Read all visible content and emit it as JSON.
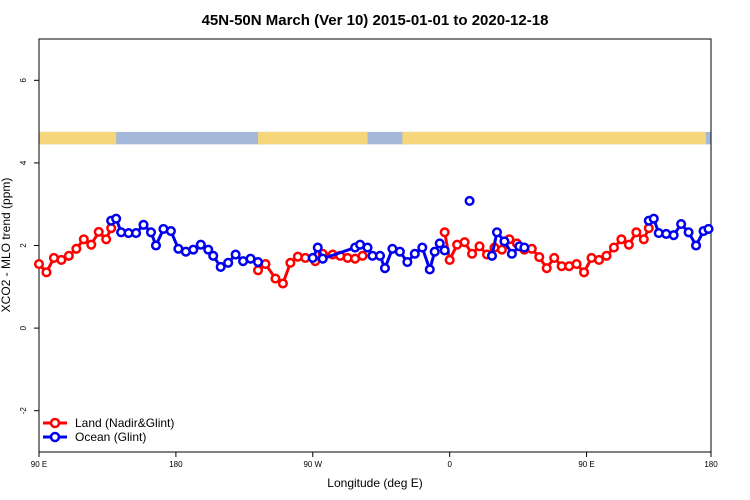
{
  "chart_data": {
    "type": "line",
    "title": "45N-50N March (Ver 10)   2015-01-01 to 2020-12-18",
    "xlabel": "Longitude (deg E)",
    "ylabel": "XCO2 - MLO trend (ppm)",
    "xlim": [
      -90,
      180
    ],
    "ylim": [
      -3,
      7
    ],
    "x_ticks": [
      {
        "value": -90,
        "label": "90 E"
      },
      {
        "value": -35,
        "label": "180"
      },
      {
        "value": 20,
        "label": "90 W"
      },
      {
        "value": 75,
        "label": "0"
      },
      {
        "value": 130,
        "label": "90 E"
      },
      {
        "value": 180,
        "label": "180"
      }
    ],
    "y_ticks": [
      -2,
      0,
      2,
      4,
      6
    ],
    "grid": false,
    "legend_position": "bottom-left",
    "land_mask": {
      "land_color": "#f5d67c",
      "ocean_color": "#a4b9d9",
      "y_range": [
        4.45,
        4.75
      ],
      "land_intervals": [
        [
          -90,
          -59
        ],
        [
          -2,
          42
        ],
        [
          56,
          178
        ]
      ]
    },
    "series": [
      {
        "name": "Land (Nadir&Glint)",
        "color": "#ff0000",
        "segments": [
          [
            [
              -90,
              1.55
            ],
            [
              -87,
              1.35
            ],
            [
              -84,
              1.7
            ],
            [
              -81,
              1.65
            ],
            [
              -78,
              1.75
            ],
            [
              -75,
              1.92
            ],
            [
              -72,
              2.15
            ],
            [
              -69,
              2.02
            ],
            [
              -66,
              2.33
            ],
            [
              -63,
              2.15
            ],
            [
              -61,
              2.42
            ]
          ],
          [
            [
              -2,
              1.4
            ],
            [
              1,
              1.55
            ],
            [
              5,
              1.2
            ],
            [
              8,
              1.08
            ],
            [
              11,
              1.58
            ],
            [
              14,
              1.73
            ],
            [
              17,
              1.7
            ],
            [
              21,
              1.62
            ],
            [
              24,
              1.8
            ],
            [
              28,
              1.78
            ],
            [
              31,
              1.75
            ],
            [
              34,
              1.7
            ],
            [
              37,
              1.68
            ],
            [
              40,
              1.75
            ]
          ],
          [
            [
              73,
              2.32
            ],
            [
              75,
              1.65
            ],
            [
              78,
              2.02
            ],
            [
              81,
              2.08
            ],
            [
              84,
              1.8
            ],
            [
              87,
              1.98
            ],
            [
              90,
              1.78
            ],
            [
              93,
              1.95
            ],
            [
              96,
              1.9
            ],
            [
              99,
              2.15
            ],
            [
              102,
              2.05
            ],
            [
              105,
              1.9
            ],
            [
              108,
              1.92
            ],
            [
              111,
              1.72
            ],
            [
              114,
              1.45
            ],
            [
              117,
              1.7
            ],
            [
              120,
              1.5
            ],
            [
              123,
              1.5
            ],
            [
              126,
              1.55
            ],
            [
              129,
              1.35
            ],
            [
              132,
              1.7
            ],
            [
              135,
              1.65
            ],
            [
              138,
              1.75
            ],
            [
              141,
              1.95
            ],
            [
              144,
              2.15
            ],
            [
              147,
              2.02
            ],
            [
              150,
              2.32
            ],
            [
              153,
              2.15
            ],
            [
              155,
              2.42
            ]
          ]
        ]
      },
      {
        "name": "Ocean (Glint)",
        "color": "#0000ee",
        "segments": [
          [
            [
              -61,
              2.6
            ],
            [
              -59,
              2.65
            ],
            [
              -57,
              2.32
            ],
            [
              -54,
              2.3
            ],
            [
              -51,
              2.3
            ],
            [
              -48,
              2.5
            ],
            [
              -45,
              2.32
            ],
            [
              -43,
              2.0
            ],
            [
              -40,
              2.4
            ],
            [
              -37,
              2.35
            ],
            [
              -34,
              1.92
            ],
            [
              -31,
              1.85
            ],
            [
              -28,
              1.9
            ],
            [
              -25,
              2.02
            ],
            [
              -22,
              1.9
            ],
            [
              -20,
              1.75
            ],
            [
              -17,
              1.48
            ],
            [
              -14,
              1.58
            ],
            [
              -11,
              1.78
            ],
            [
              -8,
              1.62
            ],
            [
              -5,
              1.68
            ],
            [
              -2,
              1.6
            ]
          ],
          [
            [
              20,
              1.7
            ],
            [
              22,
              1.95
            ],
            [
              24,
              1.68
            ],
            [
              37,
              1.95
            ],
            [
              39,
              2.02
            ],
            [
              42,
              1.95
            ],
            [
              44,
              1.75
            ],
            [
              47,
              1.75
            ],
            [
              49,
              1.45
            ],
            [
              52,
              1.92
            ],
            [
              55,
              1.85
            ],
            [
              58,
              1.6
            ],
            [
              61,
              1.8
            ],
            [
              64,
              1.95
            ],
            [
              67,
              1.42
            ],
            [
              69,
              1.85
            ],
            [
              71,
              2.05
            ],
            [
              73,
              1.88
            ]
          ],
          [
            [
              83,
              3.08
            ]
          ],
          [
            [
              92,
              1.75
            ],
            [
              94,
              2.32
            ],
            [
              97,
              2.1
            ],
            [
              100,
              1.8
            ],
            [
              103,
              1.98
            ],
            [
              105,
              1.95
            ]
          ],
          [
            [
              155,
              2.6
            ],
            [
              157,
              2.65
            ],
            [
              159,
              2.3
            ],
            [
              162,
              2.28
            ],
            [
              165,
              2.25
            ],
            [
              168,
              2.52
            ],
            [
              171,
              2.32
            ],
            [
              174,
              2.0
            ],
            [
              177,
              2.35
            ],
            [
              179,
              2.4
            ]
          ]
        ]
      }
    ]
  }
}
